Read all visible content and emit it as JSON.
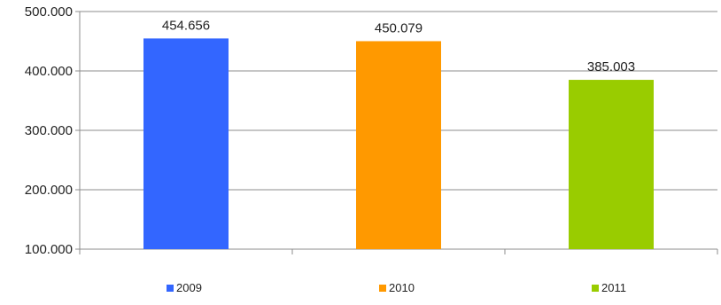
{
  "chart_data": {
    "type": "bar",
    "categories": [
      "2009",
      "2010",
      "2011"
    ],
    "values": [
      454656,
      450079,
      385003
    ],
    "data_labels": [
      "454.656",
      "450.079",
      "385.003"
    ],
    "colors": [
      "#3366ff",
      "#ff9900",
      "#99cc00"
    ],
    "ylim": [
      100000,
      500000
    ],
    "yticks": [
      100000,
      200000,
      300000,
      400000,
      500000
    ],
    "ytick_labels": [
      "100.000",
      "200.000",
      "300.000",
      "400.000",
      "500.000"
    ],
    "grid": true,
    "legend": {
      "placement": "bottom",
      "entries": [
        {
          "label": "2009",
          "color": "#3366ff"
        },
        {
          "label": "2010",
          "color": "#ff9900"
        },
        {
          "label": "2011",
          "color": "#99cc00"
        }
      ]
    },
    "title": "",
    "xlabel": "",
    "ylabel": ""
  }
}
